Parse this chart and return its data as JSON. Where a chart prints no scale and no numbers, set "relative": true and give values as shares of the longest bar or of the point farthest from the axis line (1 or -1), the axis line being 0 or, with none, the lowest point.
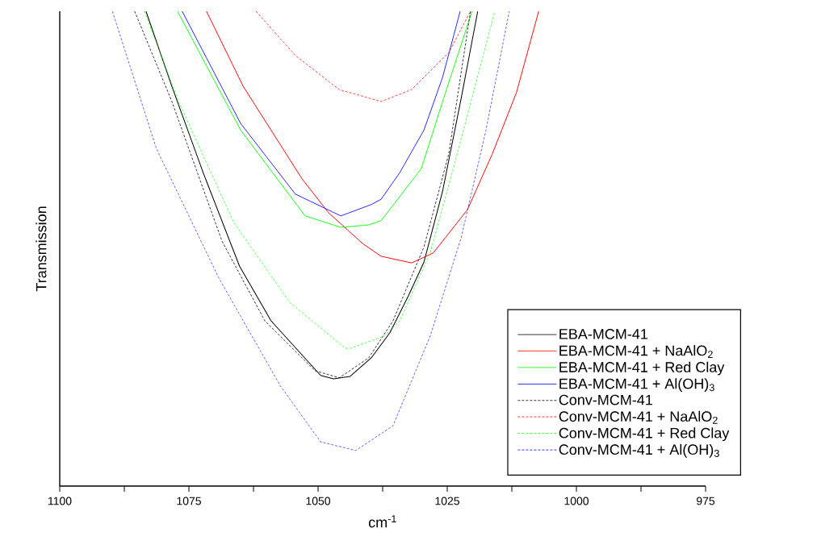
{
  "chart_data": {
    "type": "line",
    "relative": true,
    "xlabel": "cm$^{-1}$",
    "ylabel": "Transmission",
    "xlim": [
      1100,
      975
    ],
    "xticks": [
      1100,
      {
        "value": 1087.5,
        "label": null
      },
      1075,
      {
        "value": 1062.5,
        "label": null
      },
      1050,
      {
        "value": 1037.5,
        "label": null
      },
      1025,
      {
        "value": 1012.5,
        "label": null
      },
      1000,
      {
        "value": 987.5,
        "label": null
      },
      975
    ],
    "legend": "right",
    "grid": false,
    "series": [
      {
        "name": "EBA-MCM-41",
        "color": "#000000",
        "line_style": "solid",
        "x": [
          1083.3,
          1078.3,
          1072.2,
          1065.2,
          1059.1,
          1049.5,
          1047.0,
          1043.8,
          1039.7,
          1036.1,
          1032.5,
          1029.5,
          1025.9,
          1022.3,
          1019.1
        ],
        "values": [
          1.0,
          0.842,
          0.659,
          0.463,
          0.348,
          0.233,
          0.226,
          0.231,
          0.27,
          0.323,
          0.401,
          0.472,
          0.621,
          0.817,
          1.0
        ]
      },
      {
        "name": "EBA-MCM-41 + NaAlO$_{2}$",
        "color": "#ff0000",
        "line_style": "solid",
        "x": [
          1071.6,
          1064.5,
          1053.1,
          1048.0,
          1041.4,
          1037.8,
          1031.9,
          1027.7,
          1021.1,
          1016.3,
          1011.6,
          1007.3
        ],
        "values": [
          1.0,
          0.842,
          0.647,
          0.576,
          0.511,
          0.484,
          0.47,
          0.491,
          0.582,
          0.699,
          0.829,
          1.0
        ]
      },
      {
        "name": "EBA-MCM-41 + Red Clay",
        "color": "#00ff00",
        "line_style": "solid",
        "x": [
          1077.2,
          1065.0,
          1052.5,
          1045.6,
          1040.2,
          1037.8,
          1030.0,
          1025.9,
          1020.2
        ],
        "values": [
          1.0,
          0.75,
          0.569,
          0.545,
          0.55,
          0.559,
          0.669,
          0.81,
          1.0
        ]
      },
      {
        "name": "EBA-MCM-41 + Al(OH)$_{3}$",
        "color": "#0000ff",
        "line_style": "solid",
        "x": [
          1076.3,
          1065.0,
          1054.4,
          1045.6,
          1039.7,
          1037.8,
          1034.2,
          1029.5,
          1025.9,
          1022.5
        ],
        "values": [
          1.0,
          0.764,
          0.615,
          0.569,
          0.593,
          0.604,
          0.66,
          0.75,
          0.861,
          1.0
        ]
      },
      {
        "name": "Conv-MCM-41",
        "color": "#000000",
        "line_style": "dashed",
        "x": [
          1085.5,
          1078.3,
          1068.6,
          1060.3,
          1050.6,
          1045.9,
          1040.2,
          1035.5,
          1029.5,
          1024.7,
          1020.5
        ],
        "values": [
          1.0,
          0.81,
          0.516,
          0.348,
          0.243,
          0.228,
          0.27,
          0.348,
          0.504,
          0.7,
          1.0
        ]
      },
      {
        "name": "Conv-MCM-41 + NaAlO$_{2}$",
        "color": "#ff0000",
        "line_style": "dashed",
        "x": [
          1062.0,
          1054.4,
          1045.9,
          1037.8,
          1031.9,
          1024.7,
          1020.5
        ],
        "values": [
          1.0,
          0.907,
          0.835,
          0.81,
          0.835,
          0.913,
          1.0
        ]
      },
      {
        "name": "Conv-MCM-41 + Red Clay",
        "color": "#00ff00",
        "line_style": "dashed",
        "x": [
          1083.6,
          1077.0,
          1066.3,
          1055.5,
          1044.7,
          1043.8,
          1037.2,
          1034.2,
          1028.3,
          1023.4,
          1015.8
        ],
        "values": [
          1.0,
          0.81,
          0.555,
          0.387,
          0.29,
          0.29,
          0.316,
          0.348,
          0.491,
          0.686,
          1.0
        ]
      },
      {
        "name": "Conv-MCM-41 + Al(OH)$_{3}$",
        "color": "#0000ff",
        "line_style": "dashed",
        "x": [
          1089.8,
          1081.3,
          1069.2,
          1057.3,
          1049.5,
          1042.7,
          1035.5,
          1028.3,
          1022.3,
          1017.5,
          1013.0
        ],
        "values": [
          1.0,
          0.711,
          0.438,
          0.211,
          0.093,
          0.075,
          0.127,
          0.316,
          0.523,
          0.75,
          1.0
        ]
      }
    ]
  }
}
